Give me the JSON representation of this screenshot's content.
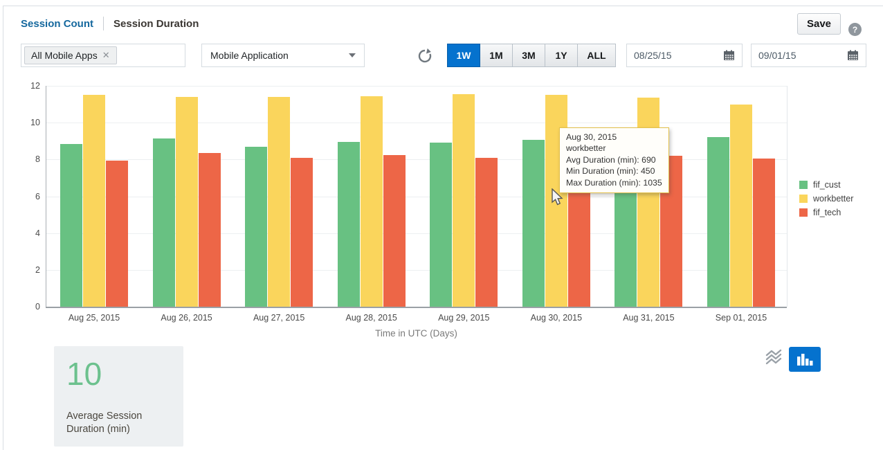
{
  "header": {
    "tabs": [
      {
        "label": "Session Count",
        "active": false
      },
      {
        "label": "Session Duration",
        "active": true
      }
    ],
    "save_label": "Save",
    "help_glyph": "?"
  },
  "filters": {
    "app_chip": "All Mobile Apps",
    "chip_close_glyph": "✕",
    "dropdown_value": "Mobile Application",
    "range_buttons": [
      {
        "label": "1W",
        "active": true
      },
      {
        "label": "1M",
        "active": false
      },
      {
        "label": "3M",
        "active": false
      },
      {
        "label": "1Y",
        "active": false
      },
      {
        "label": "ALL",
        "active": false
      }
    ],
    "date_from": "08/25/15",
    "date_to": "09/01/15"
  },
  "chart_data": {
    "type": "bar",
    "title": "",
    "xlabel": "Time in UTC (Days)",
    "ylabel": "",
    "ylim": [
      0,
      12
    ],
    "yticks": [
      0,
      2,
      4,
      6,
      8,
      10,
      12
    ],
    "grid": true,
    "legend_position": "right",
    "categories": [
      "Aug 25, 2015",
      "Aug 26, 2015",
      "Aug 27, 2015",
      "Aug 28, 2015",
      "Aug 29, 2015",
      "Aug 30, 2015",
      "Aug 31, 2015",
      "Sep 01, 2015"
    ],
    "series": [
      {
        "name": "fif_cust",
        "color": "#68c182",
        "values": [
          8.85,
          9.15,
          8.7,
          8.95,
          8.9,
          9.05,
          8.9,
          9.2
        ]
      },
      {
        "name": "workbetter",
        "color": "#fad55c",
        "values": [
          11.5,
          11.4,
          11.4,
          11.45,
          11.55,
          11.5,
          11.35,
          11.0
        ]
      },
      {
        "name": "fif_tech",
        "color": "#ed6647",
        "values": [
          7.95,
          8.35,
          8.1,
          8.25,
          8.1,
          8.2,
          8.2,
          8.05
        ]
      }
    ]
  },
  "tooltip": {
    "lines": [
      "Aug 30, 2015",
      "workbetter",
      "Avg Duration (min): 690",
      "Min Duration (min): 450",
      "Max Duration (min): 1035"
    ]
  },
  "summary_card": {
    "value": "10",
    "label": "Average Session Duration (min)"
  },
  "icons": {
    "refresh": "refresh-icon",
    "calendar": "calendar-icon",
    "help": "question-icon",
    "stream_view": "stream-waves-icon",
    "bar_chart_view": "bar-chart-icon"
  },
  "colors": {
    "accent_blue": "#0572ce",
    "link_blue": "#15689e",
    "green": "#68c182",
    "yellow": "#fad55c",
    "red": "#ed6647",
    "card_bg": "#edf0f2",
    "tooltip_border": "#e2c04a"
  }
}
